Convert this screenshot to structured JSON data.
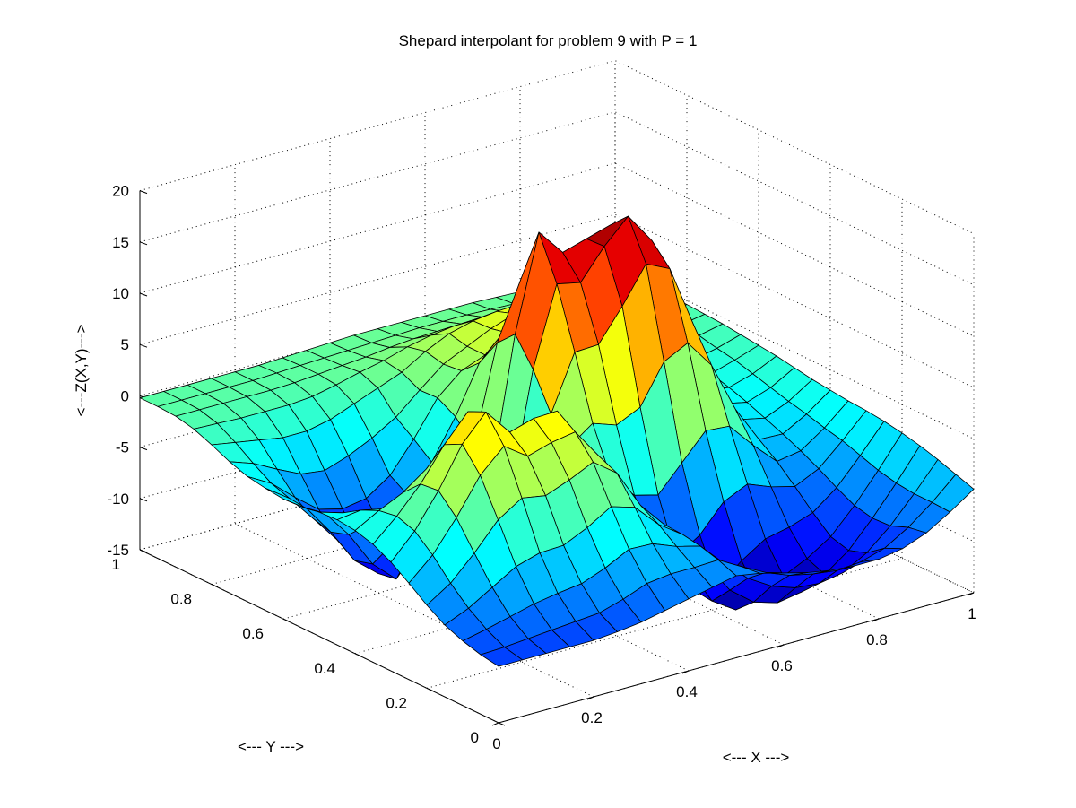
{
  "chart_data": {
    "type": "surface",
    "title": "Shepard interpolant for problem 9 with P = 1",
    "xlabel": "<--- X --->",
    "ylabel": "<--- Y --->",
    "zlabel": "<---Z(X,Y)--->",
    "xlim": [
      0,
      1
    ],
    "ylim": [
      0,
      1
    ],
    "zlim": [
      -15,
      20
    ],
    "x_ticks": [
      "0",
      "0.2",
      "0.4",
      "0.6",
      "0.8",
      "1"
    ],
    "y_ticks": [
      "0",
      "0.2",
      "0.4",
      "0.6",
      "0.8",
      "1"
    ],
    "z_ticks": [
      "-15",
      "-10",
      "-5",
      "0",
      "5",
      "10",
      "15",
      "20"
    ],
    "colormap": "jet",
    "grid": true,
    "surface": {
      "x": [
        0,
        0.05,
        0.1,
        0.15,
        0.2,
        0.25,
        0.3,
        0.35,
        0.4,
        0.45,
        0.5,
        0.55,
        0.6,
        0.65,
        0.7,
        0.75,
        0.8,
        0.85,
        0.9,
        0.95,
        1
      ],
      "y": [
        0,
        0.05,
        0.1,
        0.15,
        0.2,
        0.25,
        0.3,
        0.35,
        0.4,
        0.45,
        0.5,
        0.55,
        0.6,
        0.65,
        0.7,
        0.75,
        0.8,
        0.85,
        0.9,
        0.95,
        1
      ],
      "z": [
        [
          -9.5,
          -9.5,
          -9.5,
          -9.5,
          -9.5,
          -9.3,
          -9.0,
          -8.5,
          -8.0,
          -7.5,
          -7.0,
          -7.4,
          -8.0,
          -8.6,
          -9.0,
          -9.2,
          -9.2,
          -8.8,
          -7.9,
          -6.5,
          -4.9
        ],
        [
          -9.2,
          -9.1,
          -8.9,
          -8.7,
          -8.5,
          -8.3,
          -7.6,
          -6.7,
          -6.4,
          -6.4,
          -6.3,
          -7.6,
          -8.8,
          -9.7,
          -10.2,
          -10.5,
          -10.3,
          -9.6,
          -8.2,
          -6.4,
          -4.3
        ],
        [
          -8.7,
          -8.2,
          -7.6,
          -7.0,
          -6.6,
          -6.3,
          -5.4,
          -4.2,
          -4.3,
          -5.2,
          -5.8,
          -8.1,
          -10.2,
          -11.6,
          -12.4,
          -12.6,
          -12.2,
          -10.9,
          -8.9,
          -6.4,
          -3.7
        ],
        [
          -8.0,
          -7.0,
          -5.6,
          -4.2,
          -3.5,
          -3.4,
          -2.3,
          -0.9,
          -1.6,
          -3.9,
          -5.5,
          -9.1,
          -12.2,
          -14.0,
          -14.7,
          -14.3,
          -13.2,
          -11.5,
          -9.0,
          -6.2,
          -3.2
        ],
        [
          -6.9,
          -5.4,
          -3.1,
          -0.5,
          1.0,
          0.6,
          1.5,
          2.6,
          0.9,
          -2.9,
          -5.4,
          -10.2,
          -14.1,
          -15.6,
          -15.0,
          -13.6,
          -12.5,
          -11.0,
          -8.6,
          -5.8,
          -2.8
        ],
        [
          -5.6,
          -3.5,
          -0.5,
          3.0,
          5.2,
          3.6,
          4.3,
          4.7,
          1.7,
          -2.6,
          -5.3,
          -10.4,
          -13.9,
          -14.2,
          -12.3,
          -10.8,
          -10.3,
          -9.5,
          -7.7,
          -5.2,
          -2.5
        ],
        [
          -4.4,
          -2.0,
          1.3,
          5.2,
          7.7,
          5.1,
          5.8,
          5.9,
          2.5,
          -2.0,
          -4.9,
          -9.2,
          -11.5,
          -10.0,
          -7.4,
          -6.3,
          -7.2,
          -7.8,
          -6.7,
          -4.6,
          -2.3
        ],
        [
          -3.5,
          -1.4,
          1.1,
          4.3,
          6.9,
          4.0,
          3.3,
          3.0,
          1.5,
          -1.5,
          -3.3,
          -5.7,
          -6.3,
          -3.8,
          -1.3,
          -1.5,
          -4.0,
          -6.2,
          -5.8,
          -4.2,
          -2.2
        ],
        [
          -3.0,
          -1.7,
          -0.6,
          1.1,
          3.6,
          1.8,
          -0.5,
          -3.4,
          -2.4,
          -0.6,
          1.1,
          0.3,
          1.4,
          5.2,
          6.4,
          3.6,
          -1.3,
          -4.9,
          -5.0,
          -3.7,
          -2.0
        ],
        [
          -2.8,
          -2.5,
          -3.0,
          -3.5,
          -1.8,
          -2.0,
          -3.6,
          -8.9,
          -5.6,
          1.8,
          7.2,
          7.3,
          10.4,
          13.9,
          12.8,
          6.7,
          0.5,
          -3.8,
          -4.3,
          -3.3,
          -1.8
        ],
        [
          -2.9,
          -3.6,
          -5.5,
          -8.1,
          -8.6,
          -6.4,
          -5.6,
          -11.6,
          -6.5,
          5.3,
          13.0,
          12.5,
          15.4,
          17.7,
          14.7,
          7.3,
          1.0,
          -3.1,
          -3.6,
          -2.8,
          -1.5
        ],
        [
          -3.2,
          -4.5,
          -7.2,
          -10.7,
          -12.8,
          -10.0,
          -6.9,
          -10.5,
          -5.3,
          7.9,
          17.2,
          14.6,
          15.3,
          16.0,
          13.2,
          6.8,
          1.1,
          -2.6,
          -3.0,
          -2.3,
          -1.2
        ],
        [
          -3.3,
          -4.9,
          -7.8,
          -11.2,
          -13.1,
          -11.3,
          -7.5,
          -7.8,
          -3.3,
          6.2,
          11.8,
          11.0,
          11.7,
          12.2,
          10.2,
          5.8,
          1.2,
          -2.1,
          -2.5,
          -1.8,
          -1.0
        ],
        [
          -3.1,
          -4.7,
          -7.3,
          -10.0,
          -11.2,
          -10.6,
          -7.6,
          -5.0,
          -1.2,
          3.4,
          5.7,
          6.6,
          7.9,
          8.6,
          7.4,
          4.8,
          1.4,
          -1.6,
          -2.0,
          -1.5,
          -0.8
        ],
        [
          -2.8,
          -4.1,
          -6.1,
          -7.9,
          -8.5,
          -8.1,
          -6.5,
          -3.6,
          -0.2,
          1.8,
          2.7,
          4.2,
          5.6,
          6.3,
          5.8,
          4.1,
          1.7,
          -1.0,
          -1.5,
          -1.1,
          -0.6
        ],
        [
          -2.2,
          -3.0,
          -4.2,
          -5.3,
          -5.6,
          -4.8,
          -3.7,
          -2.3,
          -0.3,
          1.6,
          2.7,
          3.8,
          4.6,
          4.9,
          4.6,
          3.6,
          2.0,
          -0.4,
          -1.1,
          -0.9,
          -0.5
        ],
        [
          -1.4,
          -1.8,
          -2.2,
          -2.6,
          -2.6,
          -2.1,
          -1.2,
          -0.3,
          0.6,
          2.0,
          3.1,
          3.7,
          4.0,
          4.1,
          3.8,
          3.0,
          1.7,
          0.0,
          -0.8,
          -0.7,
          -0.4
        ],
        [
          -0.7,
          -0.8,
          -0.9,
          -0.9,
          -0.9,
          -0.7,
          -0.2,
          0.4,
          0.9,
          1.6,
          2.1,
          2.4,
          2.5,
          2.5,
          2.2,
          1.7,
          0.9,
          0.0,
          -0.5,
          -0.5,
          -0.3
        ],
        [
          -0.3,
          -0.3,
          -0.3,
          -0.3,
          -0.3,
          -0.2,
          0.0,
          0.2,
          0.4,
          0.7,
          0.9,
          1.0,
          1.1,
          1.1,
          1.0,
          0.8,
          0.4,
          0.0,
          -0.3,
          -0.4,
          -0.3
        ],
        [
          -0.2,
          -0.2,
          -0.2,
          -0.2,
          -0.2,
          -0.1,
          0.0,
          0.1,
          0.2,
          0.3,
          0.4,
          0.5,
          0.5,
          0.5,
          0.4,
          0.3,
          0.2,
          0.0,
          -0.2,
          -0.3,
          -0.3
        ],
        [
          -0.2,
          -0.2,
          -0.2,
          -0.2,
          -0.2,
          -0.2,
          -0.1,
          0.0,
          0.1,
          0.2,
          0.2,
          0.2,
          0.2,
          0.2,
          0.2,
          0.1,
          0.0,
          -0.1,
          -0.2,
          -0.3,
          -0.3
        ]
      ]
    }
  }
}
